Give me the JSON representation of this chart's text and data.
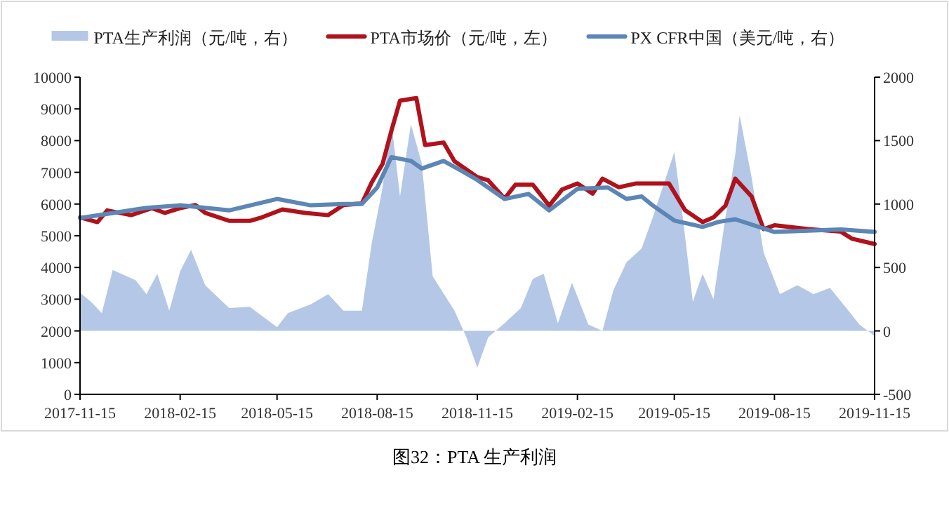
{
  "chart_data": {
    "type": "line",
    "xlim": [
      "2017-11-15",
      "2019-11-15"
    ],
    "xticks": [
      "2017-11-15",
      "2018-02-15",
      "2018-05-15",
      "2018-08-15",
      "2018-11-15",
      "2019-02-15",
      "2019-05-15",
      "2019-08-15",
      "2019-11-15"
    ],
    "ylim": [
      0,
      10000
    ],
    "yticks": [
      0,
      1000,
      2000,
      3000,
      4000,
      5000,
      6000,
      7000,
      8000,
      9000,
      10000
    ],
    "y2lim": [
      -500,
      2000
    ],
    "y2ticks": [
      -500,
      0,
      500,
      1000,
      1500,
      2000
    ],
    "legend": "top",
    "grid": false,
    "annotations": [
      "图32：PTA 生产利润"
    ],
    "series": [
      {
        "name": "PTA生产利润（元/吨，右）",
        "type": "area",
        "axis": "y2",
        "color": "#b4c7e7",
        "x": [
          "2017-11-15",
          "2017-11-25",
          "2017-12-05",
          "2017-12-15",
          "2018-01-05",
          "2018-01-15",
          "2018-01-25",
          "2018-02-05",
          "2018-02-15",
          "2018-02-25",
          "2018-03-10",
          "2018-04-01",
          "2018-04-20",
          "2018-05-15",
          "2018-05-25",
          "2018-06-15",
          "2018-07-01",
          "2018-07-15",
          "2018-08-01",
          "2018-08-10",
          "2018-08-20",
          "2018-08-28",
          "2018-09-05",
          "2018-09-15",
          "2018-09-25",
          "2018-10-05",
          "2018-10-25",
          "2018-11-05",
          "2018-11-15",
          "2018-11-25",
          "2018-12-10",
          "2018-12-25",
          "2019-01-05",
          "2019-01-15",
          "2019-01-28",
          "2019-02-10",
          "2019-02-25",
          "2019-03-10",
          "2019-03-20",
          "2019-04-01",
          "2019-04-15",
          "2019-04-25",
          "2019-05-10",
          "2019-05-15",
          "2019-05-22",
          "2019-06-01",
          "2019-06-10",
          "2019-06-20",
          "2019-06-30",
          "2019-07-10",
          "2019-07-14",
          "2019-07-25",
          "2019-08-05",
          "2019-08-20",
          "2019-09-05",
          "2019-09-20",
          "2019-10-05",
          "2019-10-20",
          "2019-11-01",
          "2019-11-15"
        ],
        "values": [
          300,
          230,
          140,
          480,
          400,
          290,
          450,
          160,
          470,
          640,
          360,
          180,
          190,
          30,
          140,
          210,
          290,
          160,
          160,
          690,
          1130,
          1650,
          1060,
          1630,
          1320,
          430,
          160,
          -50,
          -290,
          -50,
          60,
          180,
          410,
          450,
          60,
          380,
          50,
          0,
          320,
          540,
          650,
          890,
          1280,
          1410,
          950,
          230,
          450,
          250,
          840,
          1390,
          1700,
          1210,
          620,
          290,
          360,
          290,
          340,
          180,
          50,
          -40
        ]
      },
      {
        "name": "PTA市场价（元/吨，左）",
        "color": "#b0121b",
        "x": [
          "2017-11-15",
          "2017-12-01",
          "2017-12-10",
          "2018-01-01",
          "2018-01-20",
          "2018-02-01",
          "2018-02-15",
          "2018-03-01",
          "2018-03-10",
          "2018-04-01",
          "2018-04-20",
          "2018-05-01",
          "2018-05-20",
          "2018-06-10",
          "2018-07-01",
          "2018-07-15",
          "2018-08-01",
          "2018-08-10",
          "2018-08-20",
          "2018-08-28",
          "2018-09-05",
          "2018-09-20",
          "2018-09-28",
          "2018-10-15",
          "2018-10-25",
          "2018-11-15",
          "2018-11-25",
          "2018-12-10",
          "2018-12-20",
          "2019-01-05",
          "2019-01-20",
          "2019-02-01",
          "2019-02-15",
          "2019-03-01",
          "2019-03-10",
          "2019-03-25",
          "2019-04-10",
          "2019-05-10",
          "2019-05-25",
          "2019-06-10",
          "2019-06-20",
          "2019-07-01",
          "2019-07-10",
          "2019-07-25",
          "2019-08-05",
          "2019-08-15",
          "2019-09-15",
          "2019-10-15",
          "2019-10-25",
          "2019-11-15"
        ],
        "values": [
          5580,
          5430,
          5800,
          5650,
          5870,
          5720,
          5870,
          5970,
          5720,
          5470,
          5470,
          5580,
          5830,
          5720,
          5650,
          5970,
          6020,
          6680,
          7270,
          8300,
          9260,
          9340,
          7860,
          7940,
          7350,
          6850,
          6750,
          6170,
          6610,
          6610,
          5950,
          6460,
          6650,
          6330,
          6800,
          6530,
          6650,
          6650,
          5800,
          5430,
          5580,
          5950,
          6800,
          6240,
          5210,
          5330,
          5210,
          5130,
          4910,
          4740
        ]
      },
      {
        "name": "PX CFR中国（美元/吨，右）",
        "axis": "y2",
        "color": "#5b86b5",
        "x": [
          "2017-11-15",
          "2018-01-15",
          "2018-02-15",
          "2018-04-01",
          "2018-05-15",
          "2018-06-15",
          "2018-07-15",
          "2018-08-01",
          "2018-08-15",
          "2018-08-28",
          "2018-09-15",
          "2018-09-25",
          "2018-10-15",
          "2018-11-01",
          "2018-11-15",
          "2018-12-10",
          "2019-01-01",
          "2019-01-20",
          "2019-02-15",
          "2019-03-15",
          "2019-04-01",
          "2019-04-15",
          "2019-04-25",
          "2019-05-15",
          "2019-06-10",
          "2019-06-25",
          "2019-07-10",
          "2019-08-15",
          "2019-09-15",
          "2019-10-15",
          "2019-11-15"
        ],
        "values": [
          890,
          970,
          990,
          950,
          1040,
          990,
          1000,
          1000,
          1130,
          1370,
          1340,
          1280,
          1340,
          1260,
          1190,
          1040,
          1080,
          950,
          1120,
          1130,
          1040,
          1060,
          990,
          870,
          820,
          860,
          880,
          780,
          790,
          800,
          780
        ]
      }
    ]
  }
}
